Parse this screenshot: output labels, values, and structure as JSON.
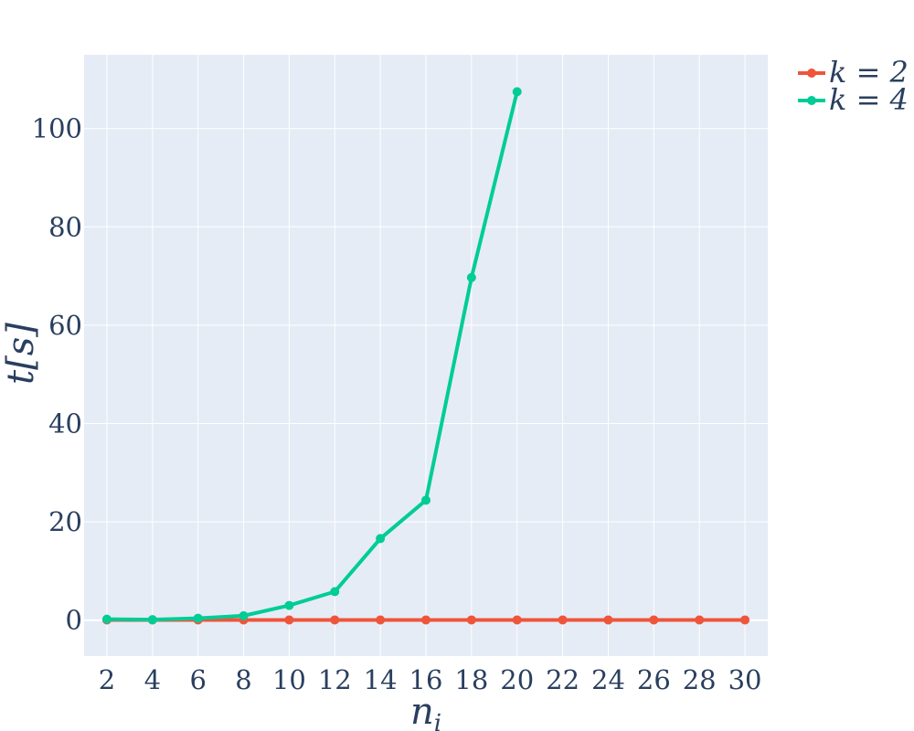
{
  "chart_data": {
    "type": "line",
    "xlabel": "n_i",
    "ylabel": "t[s]",
    "x": [
      2,
      4,
      6,
      8,
      10,
      12,
      14,
      16,
      18,
      20,
      22,
      24,
      26,
      28,
      30
    ],
    "xticks": [
      "2",
      "4",
      "6",
      "8",
      "10",
      "12",
      "14",
      "16",
      "18",
      "20",
      "22",
      "24",
      "26",
      "28",
      "30"
    ],
    "yticks": [
      "0",
      "20",
      "40",
      "60",
      "80",
      "100"
    ],
    "ylim": [
      -7.3,
      115
    ],
    "xlim": [
      1,
      31
    ],
    "grid": true,
    "legend_position": "top-right",
    "series": [
      {
        "name": "k = 2",
        "color": "#ef553b",
        "x": [
          2,
          4,
          6,
          8,
          10,
          12,
          14,
          16,
          18,
          20,
          22,
          24,
          26,
          28,
          30
        ],
        "values": [
          0.05,
          0.05,
          0.05,
          0.05,
          0.05,
          0.05,
          0.05,
          0.05,
          0.05,
          0.05,
          0.05,
          0.05,
          0.05,
          0.05,
          0.05
        ]
      },
      {
        "name": "k = 4",
        "color": "#00cc96",
        "x": [
          2,
          4,
          6,
          8,
          10,
          12,
          14,
          16,
          18,
          20
        ],
        "values": [
          0.2,
          0.1,
          0.4,
          0.9,
          3.0,
          5.8,
          16.6,
          24.4,
          69.7,
          107.5
        ]
      }
    ],
    "plot_bg": "#e5ecf6",
    "grid_color": "#ffffff",
    "text_color": "#2a3f5f"
  }
}
